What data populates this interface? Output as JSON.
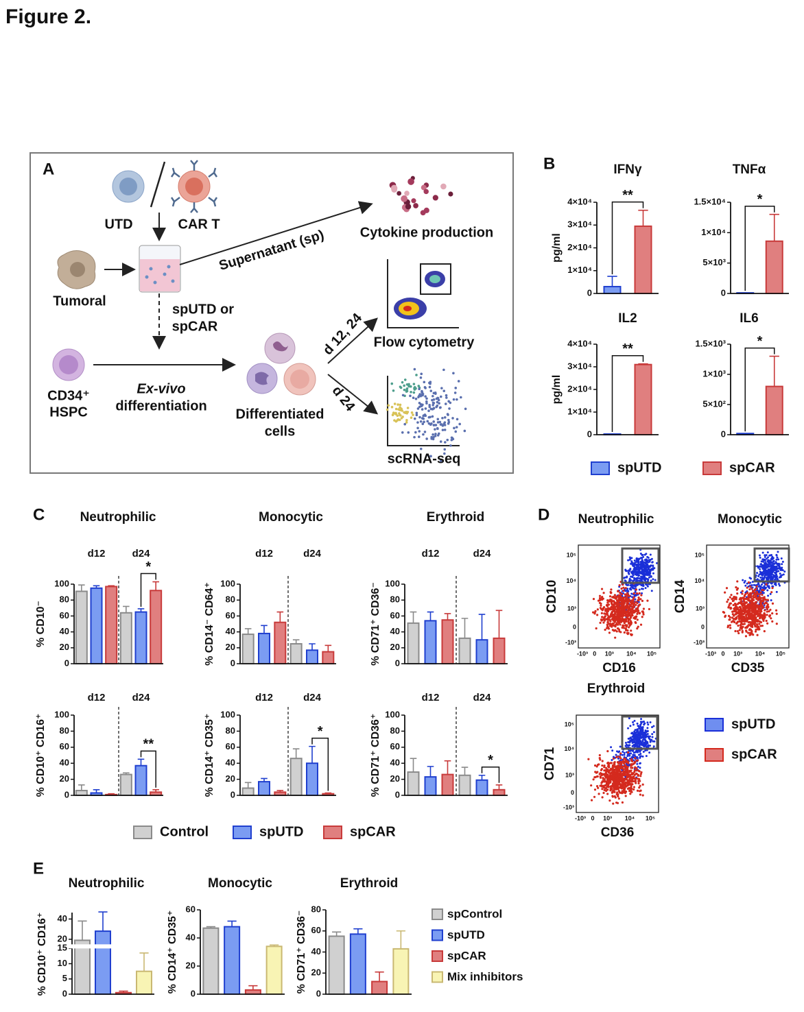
{
  "title": "Figure 2.",
  "panel_labels": [
    "A",
    "B",
    "C",
    "D",
    "E"
  ],
  "diagram": {
    "utd": "UTD",
    "car_t": "CAR T",
    "tumoral": "Tumoral",
    "supernatant": "Supernatant (sp)",
    "cytokine": "Cytokine production",
    "sp_choice": [
      "spUTD or",
      "spCAR"
    ],
    "flow_time": "d 12, 24",
    "flow": "Flow cytometry",
    "hspc": [
      "CD34⁺",
      "HSPC"
    ],
    "exvivo": "Ex-vivo",
    "differentiation": "differentiation",
    "differentiated": [
      "Differentiated",
      "cells"
    ],
    "scrna_time": "d 24",
    "scrna": "scRNA-seq"
  },
  "chart_data": [
    {
      "type": "bar",
      "title": "IFNγ",
      "ylabel": "pg/ml",
      "categories": [
        null
      ],
      "series": [
        {
          "name": "spUTD",
          "color": "#7b9cf2",
          "edge": "#1f3fcf",
          "values": [
            3000
          ],
          "errors": [
            4500
          ]
        },
        {
          "name": "spCAR",
          "color": "#e07f7f",
          "edge": "#c83a3a",
          "values": [
            29500
          ],
          "errors": [
            7000
          ]
        }
      ],
      "ylim": [
        0,
        40000
      ],
      "yticks": [
        0,
        {
          "value": 10000,
          "label": "1×10⁴"
        },
        {
          "value": 20000,
          "label": "2×10⁴"
        },
        {
          "value": 30000,
          "label": "3×10⁴"
        },
        {
          "value": 40000,
          "label": "4×10⁴"
        }
      ],
      "significance": [
        {
          "label": "**",
          "category": 0,
          "series": [
            0,
            1
          ]
        }
      ]
    },
    {
      "type": "bar",
      "title": "TNFα",
      "categories": [
        null
      ],
      "series": [
        {
          "name": "spUTD",
          "color": "#7b9cf2",
          "edge": "#1f3fcf",
          "values": [
            100
          ],
          "errors": [
            0
          ]
        },
        {
          "name": "spCAR",
          "color": "#e07f7f",
          "edge": "#c83a3a",
          "values": [
            8600
          ],
          "errors": [
            4400
          ]
        }
      ],
      "ylim": [
        0,
        15000
      ],
      "yticks": [
        0,
        {
          "value": 5000,
          "label": "5×10³"
        },
        {
          "value": 10000,
          "label": "1×10⁴"
        },
        {
          "value": 15000,
          "label": "1.5×10⁴"
        }
      ],
      "significance": [
        {
          "label": "*",
          "category": 0,
          "series": [
            0,
            1
          ]
        }
      ]
    },
    {
      "type": "bar",
      "title": "IL2",
      "ylabel": "pg/ml",
      "categories": [
        null
      ],
      "series": [
        {
          "name": "spUTD",
          "color": "#7b9cf2",
          "edge": "#1f3fcf",
          "values": [
            300
          ],
          "errors": [
            0
          ]
        },
        {
          "name": "spCAR",
          "color": "#e07f7f",
          "edge": "#c83a3a",
          "values": [
            31000
          ],
          "errors": [
            300
          ]
        }
      ],
      "ylim": [
        0,
        40000
      ],
      "yticks": [
        0,
        {
          "value": 10000,
          "label": "1×10⁴"
        },
        {
          "value": 20000,
          "label": "2×10⁴"
        },
        {
          "value": 30000,
          "label": "3×10⁴"
        },
        {
          "value": 40000,
          "label": "4×10⁴"
        }
      ],
      "significance": [
        {
          "label": "**",
          "category": 0,
          "series": [
            0,
            1
          ]
        }
      ]
    },
    {
      "type": "bar",
      "title": "IL6",
      "categories": [
        null
      ],
      "series": [
        {
          "name": "spUTD",
          "color": "#7b9cf2",
          "edge": "#1f3fcf",
          "values": [
            20
          ],
          "errors": [
            0
          ]
        },
        {
          "name": "spCAR",
          "color": "#e07f7f",
          "edge": "#c83a3a",
          "values": [
            800
          ],
          "errors": [
            500
          ]
        }
      ],
      "ylim": [
        0,
        1500
      ],
      "yticks": [
        0,
        {
          "value": 500,
          "label": "5×10²"
        },
        {
          "value": 1000,
          "label": "1×10³"
        },
        {
          "value": 1500,
          "label": "1.5×10³"
        }
      ],
      "significance": [
        {
          "label": "*",
          "category": 0,
          "series": [
            0,
            1
          ]
        }
      ]
    },
    {
      "type": "bar",
      "title": "Neutrophilic",
      "ylabel": "% CD10⁻",
      "categories": [
        "d12",
        "d24"
      ],
      "divider": true,
      "series": [
        {
          "name": "Control",
          "color": "#d0d0d0",
          "edge": "#8a8a8a",
          "values": [
            91,
            64
          ],
          "errors": [
            8,
            8
          ]
        },
        {
          "name": "spUTD",
          "color": "#7b9cf2",
          "edge": "#1f3fcf",
          "values": [
            95,
            65
          ],
          "errors": [
            3,
            4
          ]
        },
        {
          "name": "spCAR",
          "color": "#e07f7f",
          "edge": "#c83a3a",
          "values": [
            97,
            92
          ],
          "errors": [
            1,
            11
          ]
        }
      ],
      "ylim": [
        0,
        100
      ],
      "yticks": [
        0,
        20,
        40,
        60,
        80,
        100
      ],
      "significance": [
        {
          "label": "*",
          "category": 1,
          "series": [
            1,
            2
          ]
        }
      ]
    },
    {
      "type": "bar",
      "title": "Monocytic",
      "ylabel": "% CD14⁻ CD64⁺",
      "categories": [
        "d12",
        "d24"
      ],
      "divider": true,
      "series": [
        {
          "name": "Control",
          "color": "#d0d0d0",
          "edge": "#8a8a8a",
          "values": [
            37,
            25
          ],
          "errors": [
            7,
            5
          ]
        },
        {
          "name": "spUTD",
          "color": "#7b9cf2",
          "edge": "#1f3fcf",
          "values": [
            38,
            17
          ],
          "errors": [
            10,
            8
          ]
        },
        {
          "name": "spCAR",
          "color": "#e07f7f",
          "edge": "#c83a3a",
          "values": [
            52,
            15
          ],
          "errors": [
            13,
            8
          ]
        }
      ],
      "ylim": [
        0,
        100
      ],
      "yticks": [
        0,
        20,
        40,
        60,
        80,
        100
      ]
    },
    {
      "type": "bar",
      "title": "Erythroid",
      "ylabel": "% CD71⁺ CD36⁻",
      "categories": [
        "d12",
        "d24"
      ],
      "divider": true,
      "series": [
        {
          "name": "Control",
          "color": "#d0d0d0",
          "edge": "#8a8a8a",
          "values": [
            51,
            32
          ],
          "errors": [
            14,
            25
          ]
        },
        {
          "name": "spUTD",
          "color": "#7b9cf2",
          "edge": "#1f3fcf",
          "values": [
            54,
            30
          ],
          "errors": [
            11,
            32
          ]
        },
        {
          "name": "spCAR",
          "color": "#e07f7f",
          "edge": "#c83a3a",
          "values": [
            55,
            32
          ],
          "errors": [
            8,
            35
          ]
        }
      ],
      "ylim": [
        0,
        100
      ],
      "yticks": [
        0,
        20,
        40,
        60,
        80,
        100
      ]
    },
    {
      "type": "bar",
      "ylabel": "% CD10⁺ CD16⁺",
      "categories": [
        "d12",
        "d24"
      ],
      "divider": true,
      "series": [
        {
          "name": "Control",
          "color": "#d0d0d0",
          "edge": "#8a8a8a",
          "values": [
            6,
            26
          ],
          "errors": [
            7,
            2
          ]
        },
        {
          "name": "spUTD",
          "color": "#7b9cf2",
          "edge": "#1f3fcf",
          "values": [
            3,
            37
          ],
          "errors": [
            4,
            8
          ]
        },
        {
          "name": "spCAR",
          "color": "#e07f7f",
          "edge": "#c83a3a",
          "values": [
            1,
            4
          ],
          "errors": [
            1,
            3
          ]
        }
      ],
      "ylim": [
        0,
        100
      ],
      "yticks": [
        0,
        20,
        40,
        60,
        80,
        100
      ],
      "significance": [
        {
          "label": "**",
          "category": 1,
          "series": [
            1,
            2
          ]
        }
      ]
    },
    {
      "type": "bar",
      "ylabel": "% CD14⁺ CD35⁺",
      "categories": [
        "d12",
        "d24"
      ],
      "divider": true,
      "series": [
        {
          "name": "Control",
          "color": "#d0d0d0",
          "edge": "#8a8a8a",
          "values": [
            9,
            46
          ],
          "errors": [
            7,
            12
          ]
        },
        {
          "name": "spUTD",
          "color": "#7b9cf2",
          "edge": "#1f3fcf",
          "values": [
            17,
            40
          ],
          "errors": [
            4,
            21
          ]
        },
        {
          "name": "spCAR",
          "color": "#e07f7f",
          "edge": "#c83a3a",
          "values": [
            4,
            2
          ],
          "errors": [
            2,
            1
          ]
        }
      ],
      "ylim": [
        0,
        100
      ],
      "yticks": [
        0,
        20,
        40,
        60,
        80,
        100
      ],
      "significance": [
        {
          "label": "*",
          "category": 1,
          "series": [
            1,
            2
          ]
        }
      ]
    },
    {
      "type": "bar",
      "ylabel": "% CD71⁺ CD36⁺",
      "categories": [
        "d12",
        "d24"
      ],
      "divider": true,
      "series": [
        {
          "name": "Control",
          "color": "#d0d0d0",
          "edge": "#8a8a8a",
          "values": [
            29,
            25
          ],
          "errors": [
            17,
            10
          ]
        },
        {
          "name": "spUTD",
          "color": "#7b9cf2",
          "edge": "#1f3fcf",
          "values": [
            23,
            19
          ],
          "errors": [
            13,
            6
          ]
        },
        {
          "name": "spCAR",
          "color": "#e07f7f",
          "edge": "#c83a3a",
          "values": [
            26,
            7
          ],
          "errors": [
            17,
            6
          ]
        }
      ],
      "ylim": [
        0,
        100
      ],
      "yticks": [
        0,
        20,
        40,
        60,
        80,
        100
      ],
      "significance": [
        {
          "label": "*",
          "category": 1,
          "series": [
            1,
            2
          ]
        }
      ]
    },
    {
      "type": "bar",
      "title": "Neutrophilic",
      "ylabel": "% CD10⁺ CD16⁺",
      "categories": [
        null
      ],
      "ybreak": 15,
      "series": [
        {
          "name": "spControl",
          "color": "#d0d0d0",
          "edge": "#8a8a8a",
          "values": [
            19
          ],
          "errors": [
            19
          ]
        },
        {
          "name": "spUTD",
          "color": "#7b9cf2",
          "edge": "#1f3fcf",
          "values": [
            28
          ],
          "errors": [
            19
          ]
        },
        {
          "name": "spCAR",
          "color": "#e07f7f",
          "edge": "#c83a3a",
          "values": [
            0.5
          ],
          "errors": [
            0.5
          ]
        },
        {
          "name": "Mix inhibitors",
          "color": "#f8f4b4",
          "edge": "#c9b872",
          "values": [
            7.5
          ],
          "errors": [
            6
          ]
        }
      ],
      "ylim": [
        0,
        45
      ],
      "yticks": [
        0,
        5,
        10,
        15,
        20,
        40
      ]
    },
    {
      "type": "bar",
      "title": "Monocytic",
      "ylabel": "% CD14⁺ CD35⁺",
      "categories": [
        null
      ],
      "series": [
        {
          "name": "spControl",
          "color": "#d0d0d0",
          "edge": "#8a8a8a",
          "values": [
            47
          ],
          "errors": [
            1
          ]
        },
        {
          "name": "spUTD",
          "color": "#7b9cf2",
          "edge": "#1f3fcf",
          "values": [
            48
          ],
          "errors": [
            4
          ]
        },
        {
          "name": "spCAR",
          "color": "#e07f7f",
          "edge": "#c83a3a",
          "values": [
            3
          ],
          "errors": [
            3
          ]
        },
        {
          "name": "Mix inhibitors",
          "color": "#f8f4b4",
          "edge": "#c9b872",
          "values": [
            34
          ],
          "errors": [
            1
          ]
        }
      ],
      "ylim": [
        0,
        60
      ],
      "yticks": [
        0,
        20,
        40,
        60
      ]
    },
    {
      "type": "bar",
      "title": "Erythroid",
      "ylabel": "% CD71⁺ CD36⁻",
      "categories": [
        null
      ],
      "series": [
        {
          "name": "spControl",
          "color": "#d0d0d0",
          "edge": "#8a8a8a",
          "values": [
            55
          ],
          "errors": [
            4
          ]
        },
        {
          "name": "spUTD",
          "color": "#7b9cf2",
          "edge": "#1f3fcf",
          "values": [
            57
          ],
          "errors": [
            5
          ]
        },
        {
          "name": "spCAR",
          "color": "#e07f7f",
          "edge": "#c83a3a",
          "values": [
            12
          ],
          "errors": [
            9
          ]
        },
        {
          "name": "Mix inhibitors",
          "color": "#f8f4b4",
          "edge": "#c9b872",
          "values": [
            43
          ],
          "errors": [
            17
          ]
        }
      ],
      "ylim": [
        0,
        80
      ],
      "yticks": [
        0,
        20,
        40,
        60,
        80
      ]
    }
  ],
  "flow_cytometry": {
    "plots": [
      {
        "title": "Neutrophilic",
        "x_label": "CD16",
        "y_label": "CD10",
        "x_ticks": [
          "-10³",
          "0",
          "10³",
          "10⁴",
          "10⁵"
        ],
        "y_ticks": [
          "-10³",
          "0",
          "10³",
          "10⁴",
          "10⁵"
        ]
      },
      {
        "title": "Monocytic",
        "x_label": "CD35",
        "y_label": "CD14",
        "x_ticks": [
          "-10³",
          "0",
          "10³",
          "10⁴",
          "10⁵"
        ],
        "y_ticks": [
          "-10³",
          "0",
          "10³",
          "10⁴",
          "10⁵"
        ]
      },
      {
        "title": "Erythroid",
        "x_label": "CD36",
        "y_label": "CD71",
        "x_ticks": [
          "-10³",
          "0",
          "10³",
          "10⁴",
          "10⁵"
        ],
        "y_ticks": [
          "-10³",
          "0",
          "10³",
          "10⁴",
          "10⁵"
        ]
      }
    ],
    "legend": [
      {
        "name": "spUTD",
        "color": "#6f8ef0",
        "edge": "#1a2fd8"
      },
      {
        "name": "spCAR",
        "color": "#e07f7f",
        "edge": "#d42a1e"
      }
    ]
  }
}
